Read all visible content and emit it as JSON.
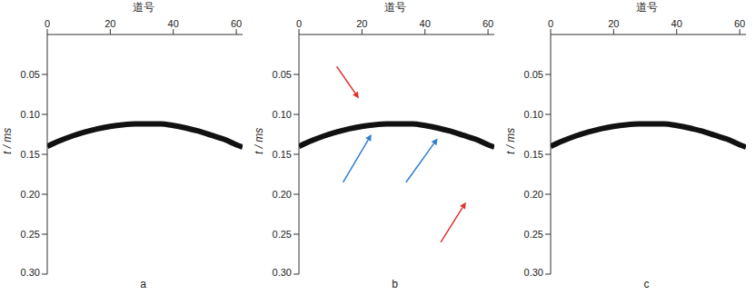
{
  "chart_data": [
    {
      "type": "line",
      "title": "a",
      "x_label": "道号",
      "y_label": "t / ms",
      "x": [
        0,
        4,
        8,
        12,
        16,
        20,
        24,
        28,
        32,
        36,
        40,
        44,
        48,
        52,
        56,
        60,
        62
      ],
      "values": [
        0.14,
        0.133,
        0.127,
        0.122,
        0.118,
        0.115,
        0.113,
        0.112,
        0.112,
        0.112,
        0.114,
        0.117,
        0.121,
        0.126,
        0.131,
        0.138,
        0.141
      ],
      "color": "#111111",
      "xlim": [
        0,
        62
      ],
      "xticks": [
        0,
        20,
        40,
        60
      ],
      "ylim": [
        0,
        0.3
      ],
      "yticks": [
        {
          "value": 0.05,
          "label": "0.05"
        },
        {
          "value": 0.1,
          "label": "0.10"
        },
        {
          "value": 0.15,
          "label": "0.15"
        },
        {
          "value": 0.2,
          "label": "0.20"
        },
        {
          "value": 0.25,
          "label": "0.25"
        },
        {
          "value": 0.3,
          "label": "0.30"
        }
      ],
      "arrows": []
    },
    {
      "type": "line",
      "title": "b",
      "x_label": "道号",
      "y_label": "t / ms",
      "x": [
        0,
        4,
        8,
        12,
        16,
        20,
        24,
        28,
        32,
        36,
        40,
        44,
        48,
        52,
        56,
        60,
        62
      ],
      "values": [
        0.14,
        0.133,
        0.127,
        0.122,
        0.118,
        0.115,
        0.113,
        0.112,
        0.112,
        0.112,
        0.114,
        0.117,
        0.121,
        0.126,
        0.131,
        0.138,
        0.141
      ],
      "color": "#111111",
      "xlim": [
        0,
        62
      ],
      "xticks": [
        0,
        20,
        40,
        60
      ],
      "ylim": [
        0,
        0.3
      ],
      "yticks": [
        {
          "value": 0.05,
          "label": "0.05"
        },
        {
          "value": 0.1,
          "label": "0.10"
        },
        {
          "value": 0.15,
          "label": "0.15"
        },
        {
          "value": 0.2,
          "label": "0.20"
        },
        {
          "value": 0.25,
          "label": "0.25"
        },
        {
          "value": 0.3,
          "label": "0.30"
        }
      ],
      "arrows": [
        {
          "from": [
            12,
            0.04
          ],
          "to": [
            19,
            0.08
          ],
          "color": "#e03030"
        },
        {
          "from": [
            14,
            0.185
          ],
          "to": [
            23,
            0.125
          ],
          "color": "#2f7fd0"
        },
        {
          "from": [
            34,
            0.185
          ],
          "to": [
            44,
            0.13
          ],
          "color": "#2f7fd0"
        },
        {
          "from": [
            45,
            0.26
          ],
          "to": [
            53,
            0.21
          ],
          "color": "#e03030"
        }
      ]
    },
    {
      "type": "line",
      "title": "c",
      "x_label": "道号",
      "y_label": "t / ms",
      "x": [
        0,
        4,
        8,
        12,
        16,
        20,
        24,
        28,
        32,
        36,
        40,
        44,
        48,
        52,
        56,
        60,
        62
      ],
      "values": [
        0.14,
        0.133,
        0.127,
        0.122,
        0.118,
        0.115,
        0.113,
        0.112,
        0.112,
        0.112,
        0.114,
        0.117,
        0.121,
        0.126,
        0.131,
        0.138,
        0.141
      ],
      "color": "#111111",
      "xlim": [
        0,
        62
      ],
      "xticks": [
        0,
        20,
        40,
        60
      ],
      "ylim": [
        0,
        0.3
      ],
      "yticks": [
        {
          "value": 0.05,
          "label": "0.05"
        },
        {
          "value": 0.1,
          "label": "0.10"
        },
        {
          "value": 0.15,
          "label": "0.15"
        },
        {
          "value": 0.2,
          "label": "0.20"
        },
        {
          "value": 0.25,
          "label": "0.25"
        },
        {
          "value": 0.3,
          "label": "0.30"
        }
      ],
      "arrows": []
    }
  ]
}
